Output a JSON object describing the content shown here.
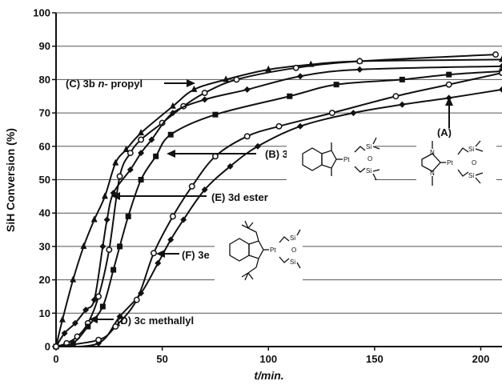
{
  "chart_data": {
    "type": "line",
    "title": "",
    "xlabel": "t/min.",
    "ylabel": "SiH Conversion (%)",
    "xlim": [
      0,
      210
    ],
    "ylim": [
      0,
      100
    ],
    "xticks": [
      "0",
      "50",
      "100",
      "150",
      "200"
    ],
    "yticks": [
      "0",
      "10",
      "20",
      "30",
      "40",
      "50",
      "60",
      "70",
      "80",
      "90",
      "100"
    ],
    "grid": "horizontal",
    "series": [
      {
        "name": "",
        "marker": "triangle",
        "values": [
          [
            0,
            0
          ],
          [
            3,
            8
          ],
          [
            8,
            20
          ],
          [
            13,
            30
          ],
          [
            18,
            38
          ],
          [
            23,
            45
          ],
          [
            28,
            55
          ],
          [
            33,
            59
          ],
          [
            40,
            64
          ],
          [
            55,
            72
          ],
          [
            65,
            77
          ],
          [
            80,
            80
          ],
          [
            100,
            83
          ],
          [
            120,
            84.5
          ],
          [
            143,
            85.5
          ],
          [
            210,
            86
          ]
        ]
      },
      {
        "name": "",
        "marker": "circle",
        "values": [
          [
            0,
            0
          ],
          [
            5,
            1
          ],
          [
            10,
            3
          ],
          [
            15,
            7
          ],
          [
            20,
            15
          ],
          [
            25,
            29
          ],
          [
            30,
            51
          ],
          [
            35,
            58
          ],
          [
            40,
            62
          ],
          [
            50,
            67
          ],
          [
            60,
            72
          ],
          [
            70,
            76
          ],
          [
            85,
            80
          ],
          [
            113,
            83.5
          ],
          [
            143,
            85.5
          ],
          [
            207,
            87.5
          ]
        ]
      },
      {
        "name": "",
        "marker": "square",
        "values": [
          [
            0,
            0
          ],
          [
            8,
            1
          ],
          [
            15,
            6
          ],
          [
            22,
            12
          ],
          [
            27,
            23
          ],
          [
            30,
            30
          ],
          [
            34,
            39
          ],
          [
            40,
            50
          ],
          [
            47,
            57
          ],
          [
            54,
            63.5
          ],
          [
            75,
            69.5
          ],
          [
            110,
            75
          ],
          [
            132,
            78.5
          ],
          [
            163,
            80
          ],
          [
            185,
            81.5
          ],
          [
            210,
            82.5
          ]
        ]
      },
      {
        "name": "",
        "marker": "diamond",
        "values": [
          [
            0,
            0
          ],
          [
            4,
            4
          ],
          [
            9,
            7
          ],
          [
            14,
            11
          ],
          [
            18,
            14
          ],
          [
            22,
            30
          ],
          [
            24,
            38
          ],
          [
            27,
            46
          ],
          [
            35,
            53
          ],
          [
            40,
            58
          ],
          [
            45,
            62
          ],
          [
            55,
            70
          ],
          [
            70,
            74
          ],
          [
            90,
            77
          ],
          [
            115,
            81
          ],
          [
            143,
            83
          ],
          [
            210,
            84
          ]
        ]
      },
      {
        "name": "",
        "marker": "diamond",
        "values": [
          [
            0,
            0
          ],
          [
            20,
            1
          ],
          [
            30,
            9
          ],
          [
            40,
            16
          ],
          [
            48,
            25
          ],
          [
            54,
            32
          ],
          [
            60,
            38
          ],
          [
            70,
            47
          ],
          [
            82,
            54
          ],
          [
            95,
            60
          ],
          [
            115,
            66
          ],
          [
            140,
            70
          ],
          [
            163,
            72.5
          ],
          [
            185,
            74.5
          ],
          [
            210,
            77
          ]
        ]
      },
      {
        "name": "",
        "marker": "circle",
        "values": [
          [
            0,
            0
          ],
          [
            20,
            2
          ],
          [
            28,
            6
          ],
          [
            38,
            14
          ],
          [
            46,
            28
          ],
          [
            55,
            39
          ],
          [
            64,
            48
          ],
          [
            75,
            57
          ],
          [
            90,
            63
          ],
          [
            105,
            66
          ],
          [
            130,
            70
          ],
          [
            160,
            75
          ],
          [
            185,
            78.5
          ],
          [
            210,
            82
          ]
        ]
      }
    ],
    "annotations": [
      {
        "text_pre": "(C) 3b ",
        "text_em": "n-",
        "text_post": " propyl"
      },
      {
        "text": "(B) 3a"
      },
      {
        "text": "(E) 3d ester"
      },
      {
        "text": "(F) 3e"
      },
      {
        "text": "(D) 3c methallyl"
      },
      {
        "text": "(A)"
      }
    ],
    "structure_labels": {
      "pt": "Pt",
      "si": "Si",
      "o": "O",
      "n": "N"
    }
  }
}
